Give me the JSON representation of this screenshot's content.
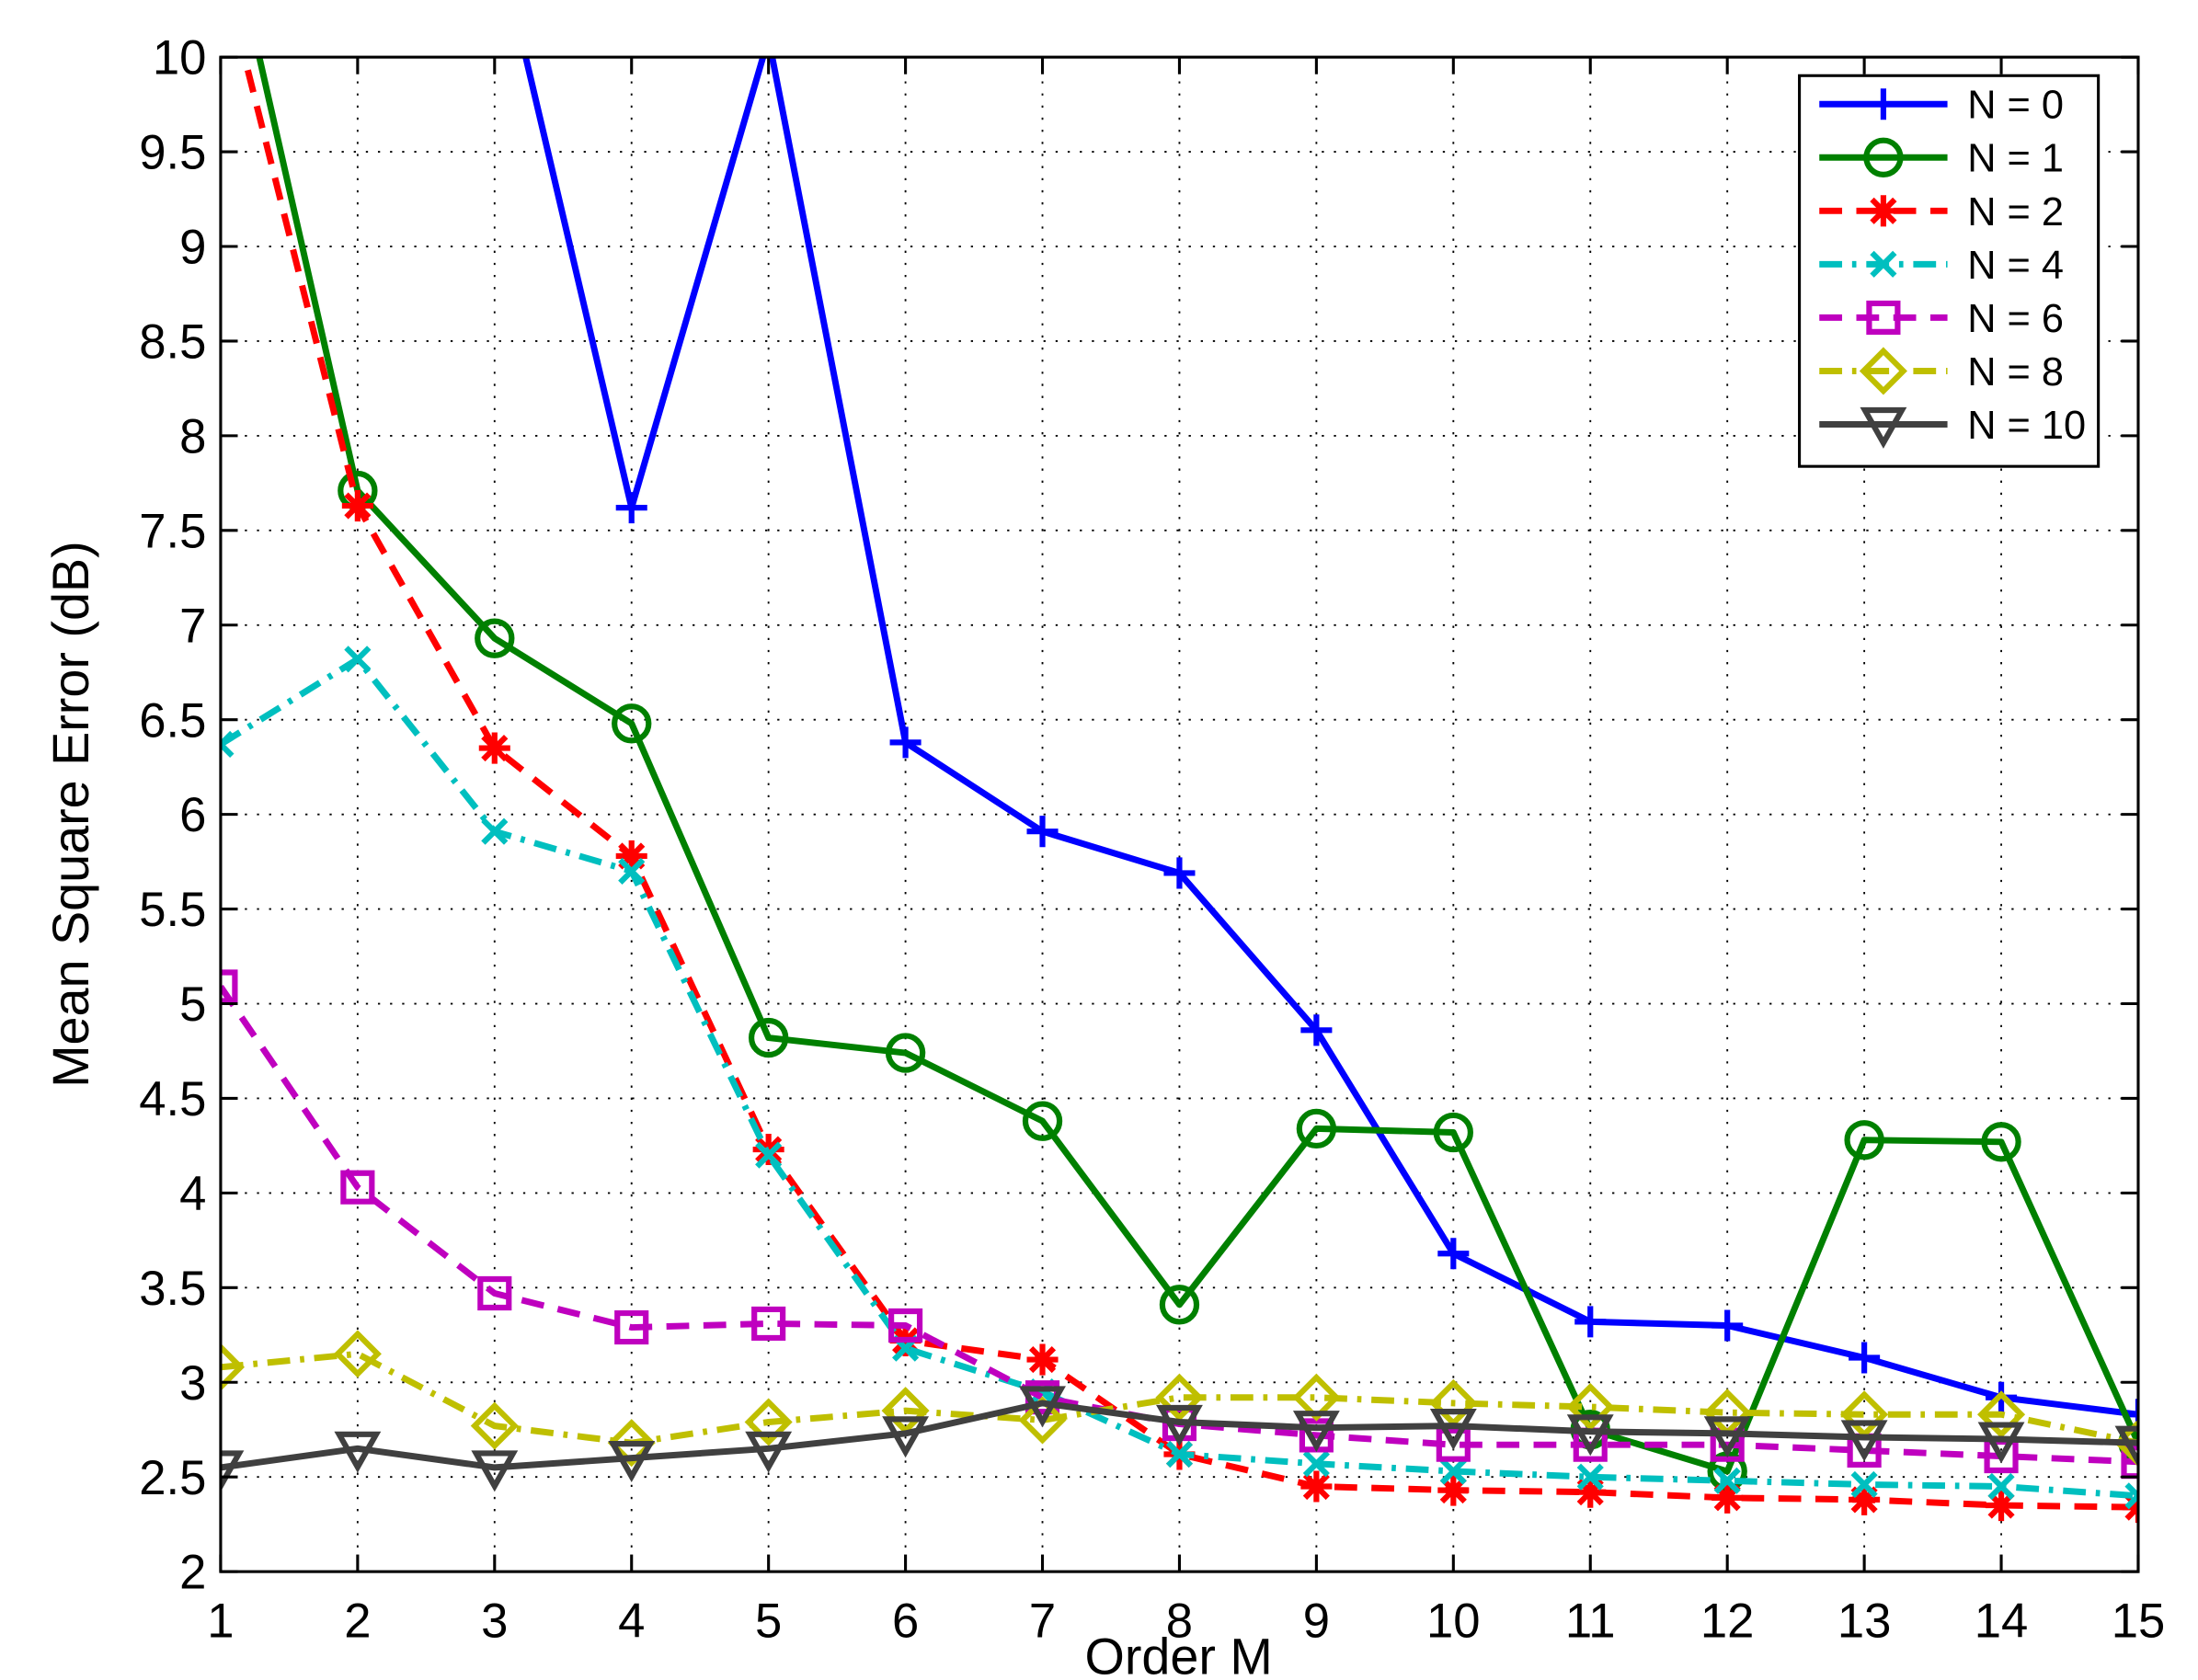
{
  "chart_data": {
    "type": "line",
    "xlabel": "Order M",
    "ylabel": "Mean Square Error (dB)",
    "x": [
      1,
      2,
      3,
      4,
      5,
      6,
      7,
      8,
      9,
      10,
      11,
      12,
      13,
      14,
      15
    ],
    "xlim": [
      1,
      15
    ],
    "xticks": [
      1,
      2,
      3,
      4,
      5,
      6,
      7,
      8,
      9,
      10,
      11,
      12,
      13,
      14,
      15
    ],
    "ylim": [
      2,
      10
    ],
    "yticks": [
      2,
      2.5,
      3,
      3.5,
      4,
      4.5,
      5,
      5.5,
      6,
      6.5,
      7,
      7.5,
      8,
      8.5,
      9,
      9.5,
      10
    ],
    "grid": true,
    "legend": "upper right",
    "series": [
      {
        "name": "N = 0",
        "color": "#0000ff",
        "marker": "plus",
        "dash": "solid",
        "values": [
          null,
          null,
          10.7,
          7.62,
          10.1,
          6.38,
          5.91,
          5.69,
          4.86,
          3.68,
          3.32,
          3.3,
          3.13,
          2.92,
          2.83
        ]
      },
      {
        "name": "N = 1",
        "color": "#008000",
        "marker": "circle",
        "dash": "solid",
        "values": [
          10.9,
          7.71,
          6.93,
          6.48,
          4.82,
          4.74,
          4.38,
          3.41,
          4.34,
          4.32,
          2.75,
          2.53,
          4.28,
          4.27,
          2.68
        ]
      },
      {
        "name": "N = 2",
        "color": "#ff0000",
        "marker": "asterisk",
        "dash": "dashed",
        "values": [
          10.5,
          7.63,
          6.35,
          5.78,
          4.23,
          3.22,
          3.12,
          2.62,
          2.45,
          2.43,
          2.42,
          2.39,
          2.38,
          2.35,
          2.34
        ]
      },
      {
        "name": "N = 4",
        "color": "#00bfbf",
        "marker": "x",
        "dash": "dashdot",
        "values": [
          6.37,
          6.82,
          5.91,
          5.7,
          4.2,
          3.18,
          2.95,
          2.62,
          2.57,
          2.53,
          2.5,
          2.48,
          2.46,
          2.45,
          2.4
        ]
      },
      {
        "name": "N = 6",
        "color": "#bf00bf",
        "marker": "square",
        "dash": "dashed",
        "values": [
          5.09,
          4.03,
          3.47,
          3.29,
          3.31,
          3.3,
          2.92,
          2.78,
          2.72,
          2.67,
          2.67,
          2.67,
          2.64,
          2.61,
          2.58
        ]
      },
      {
        "name": "N = 8",
        "color": "#bfbf00",
        "marker": "diamond",
        "dash": "dashdot",
        "values": [
          3.08,
          3.15,
          2.77,
          2.68,
          2.79,
          2.85,
          2.8,
          2.92,
          2.92,
          2.89,
          2.87,
          2.84,
          2.83,
          2.83,
          2.68
        ]
      },
      {
        "name": "N = 10",
        "color": "#404040",
        "marker": "triangle-down",
        "dash": "solid",
        "values": [
          2.55,
          2.65,
          2.55,
          2.6,
          2.65,
          2.73,
          2.89,
          2.79,
          2.76,
          2.77,
          2.74,
          2.73,
          2.71,
          2.7,
          2.68
        ]
      }
    ]
  }
}
